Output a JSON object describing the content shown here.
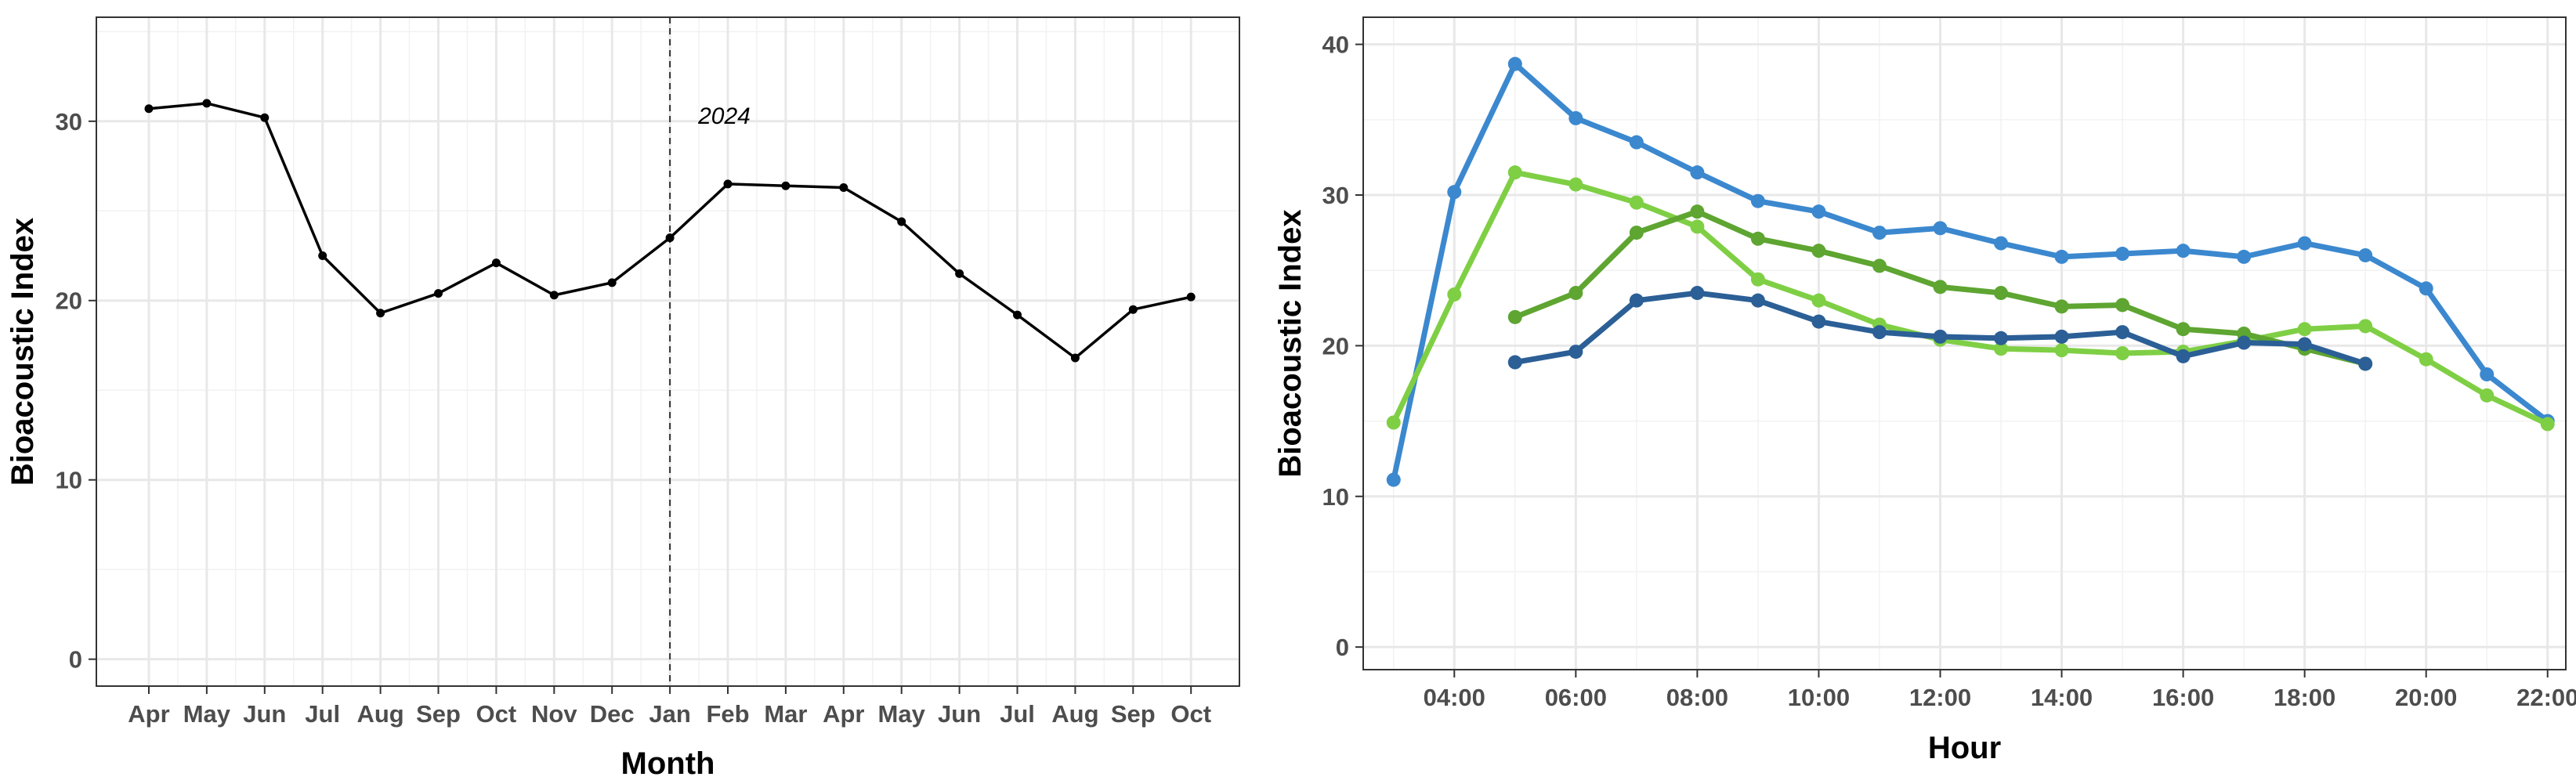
{
  "chart_data": [
    {
      "type": "line",
      "title": "",
      "xlabel": "Month",
      "ylabel": "Bioacoustic Index",
      "categories": [
        "Apr",
        "May",
        "Jun",
        "Jul",
        "Aug",
        "Sep",
        "Oct",
        "Nov",
        "Dec",
        "Jan",
        "Feb",
        "Mar",
        "Apr",
        "May",
        "Jun",
        "Jul",
        "Aug",
        "Sep",
        "Oct"
      ],
      "series": [
        {
          "values": [
            30.7,
            31.0,
            30.2,
            22.5,
            19.3,
            20.4,
            22.1,
            20.3,
            21.0,
            23.5,
            26.5,
            26.4,
            26.3,
            24.4,
            21.5,
            19.2,
            16.8,
            19.5,
            20.2
          ]
        }
      ],
      "ylim": [
        -1.5,
        35.8
      ],
      "yticks": [
        0,
        10,
        20,
        30
      ],
      "grid": true,
      "line_color": "#000000",
      "vline": {
        "category_index": 9,
        "label": "2024",
        "style": "dashed"
      }
    },
    {
      "type": "line",
      "title": "",
      "xlabel": "Hour",
      "ylabel": "Bioacoustic Index",
      "xlim": [
        2.5,
        22.3
      ],
      "xticks": [
        4,
        6,
        8,
        10,
        12,
        14,
        16,
        18,
        20,
        22
      ],
      "xtick_labels": [
        "04:00",
        "06:00",
        "08:00",
        "10:00",
        "12:00",
        "14:00",
        "16:00",
        "18:00",
        "20:00",
        "22:00"
      ],
      "ylim": [
        -1.5,
        41.8
      ],
      "yticks": [
        0,
        10,
        20,
        30,
        40
      ],
      "grid": true,
      "series": [
        {
          "color": "#3b88cf",
          "x": [
            3,
            4,
            5,
            6,
            7,
            8,
            9,
            10,
            11,
            12,
            13,
            14,
            15,
            16,
            17,
            18,
            19,
            20,
            21,
            22
          ],
          "values": [
            11.1,
            30.2,
            38.7,
            35.1,
            33.5,
            31.5,
            29.6,
            28.9,
            27.5,
            27.8,
            26.8,
            25.9,
            26.1,
            26.3,
            25.9,
            26.8,
            26.0,
            23.8,
            18.1,
            15.0
          ]
        },
        {
          "color": "#7fcf45",
          "x": [
            3,
            4,
            5,
            6,
            7,
            8,
            9,
            10,
            11,
            12,
            13,
            14,
            15,
            16,
            17,
            18,
            19,
            20,
            21,
            22
          ],
          "values": [
            14.9,
            23.4,
            31.5,
            30.7,
            29.5,
            27.9,
            24.4,
            23.0,
            21.4,
            20.4,
            19.8,
            19.7,
            19.5,
            19.6,
            20.3,
            21.1,
            21.3,
            19.1,
            16.7,
            14.8
          ]
        },
        {
          "color": "#5ea531",
          "x": [
            5,
            6,
            7,
            8,
            9,
            10,
            11,
            12,
            13,
            14,
            15,
            16,
            17,
            18,
            19
          ],
          "values": [
            21.9,
            23.5,
            27.5,
            28.9,
            27.1,
            26.3,
            25.3,
            23.9,
            23.5,
            22.6,
            22.7,
            21.1,
            20.8,
            19.8,
            18.8
          ]
        },
        {
          "color": "#2b5f96",
          "x": [
            5,
            6,
            7,
            8,
            9,
            10,
            11,
            12,
            13,
            14,
            15,
            16,
            17,
            18,
            19
          ],
          "values": [
            18.9,
            19.6,
            23.0,
            23.5,
            23.0,
            21.6,
            20.9,
            20.6,
            20.5,
            20.6,
            20.9,
            19.3,
            20.2,
            20.1,
            18.8
          ]
        }
      ]
    }
  ]
}
